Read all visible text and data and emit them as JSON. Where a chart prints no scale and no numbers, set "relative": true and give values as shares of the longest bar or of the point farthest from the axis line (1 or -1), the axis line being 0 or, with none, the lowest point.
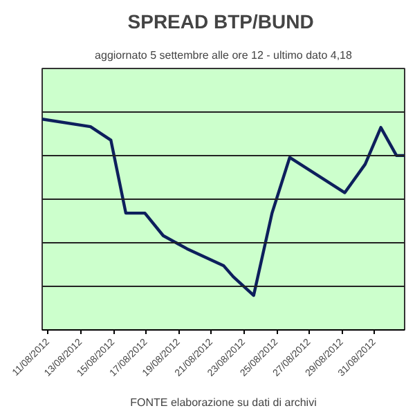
{
  "chart_data": {
    "type": "line",
    "title": "SPREAD  BTP/BUND",
    "subtitle": "aggiornato 5 settembre alle ore 12 - ultimo dato 4,18",
    "annotations": [
      "FONTE elaborazione su dati di archivi"
    ],
    "relative": true,
    "grid": "y",
    "x": [
      "2012-08-10T15:00",
      "2012-08-13T14:00",
      "2012-08-14T20:00",
      "2012-08-15T18:00",
      "2012-08-16T22:00",
      "2012-08-18T01:00",
      "2012-08-19T12:00",
      "2012-08-21T18:00",
      "2012-08-22T08:00",
      "2012-08-23T14:00",
      "2012-08-24T17:00",
      "2012-08-25T19:00",
      "2012-08-29T04:00",
      "2012-08-30T10:00",
      "2012-08-31T09:00",
      "2012-09-01T08:00",
      "2012-09-01T20:00"
    ],
    "series": [
      {
        "color": "#0d1f5c",
        "values": [
          1,
          0.964,
          0.9,
          0.554,
          0.554,
          0.447,
          0.385,
          0.304,
          0.252,
          0.164,
          0.554,
          0.818,
          0.651,
          0.786,
          0.96,
          0.827,
          0.827
        ]
      }
    ],
    "xlim": [
      "2012-08-10T15:00",
      "2012-09-01T20:00"
    ],
    "xticks": [
      {
        "value": "2012-08-11",
        "label": "11/08/2012"
      },
      {
        "value": "2012-08-13",
        "label": "13/08/2012"
      },
      {
        "value": "2012-08-15",
        "label": "15/08/2012"
      },
      {
        "value": "2012-08-17",
        "label": "17/08/2012"
      },
      {
        "value": "2012-08-19",
        "label": "19/08/2012"
      },
      {
        "value": "2012-08-21",
        "label": "21/08/2012"
      },
      {
        "value": "2012-08-23",
        "label": "23/08/2012"
      },
      {
        "value": "2012-08-25",
        "label": "25/08/2012"
      },
      {
        "value": "2012-08-27",
        "label": "27/08/2012"
      },
      {
        "value": "2012-08-29",
        "label": "29/08/2012"
      },
      {
        "value": "2012-08-31",
        "label": "31/08/2012"
      }
    ],
    "tick_labels": "x"
  }
}
